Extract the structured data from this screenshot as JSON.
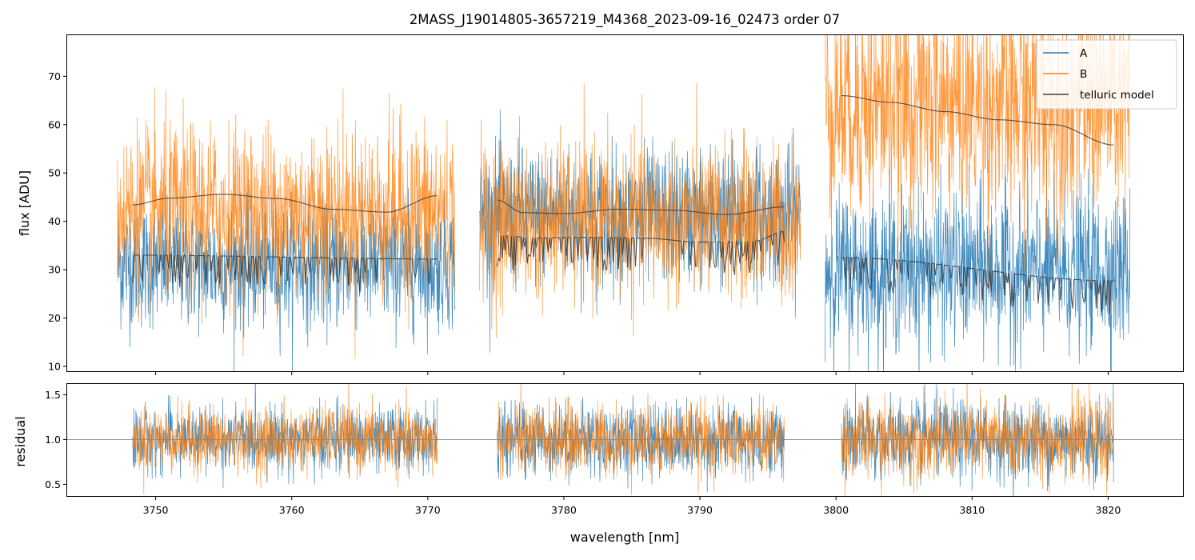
{
  "chart_data": {
    "type": "line",
    "title": "2MASS_J19014805-3657219_M4368_2023-09-16_02473  order 07",
    "xlabel": "wavelength [nm]",
    "xlim": [
      3743.5,
      3825.5
    ],
    "x_ticks": [
      3750,
      3760,
      3770,
      3780,
      3790,
      3800,
      3810,
      3820
    ],
    "x_tick_labels": [
      "3750",
      "3760",
      "3770",
      "3780",
      "3790",
      "3800",
      "3810",
      "3820"
    ],
    "colors": {
      "A": "#1f77b4",
      "B": "#ff7f0e",
      "telluric": "#3b3b3b",
      "refline": "#888888"
    },
    "legend": {
      "position": "top-right",
      "entries": [
        "A",
        "B",
        "telluric model"
      ]
    },
    "panels": [
      {
        "name": "flux",
        "ylabel": "flux [ADU]",
        "ylim": [
          9,
          78.5
        ],
        "y_ticks": [
          10,
          20,
          30,
          40,
          50,
          60,
          70
        ],
        "y_tick_labels": [
          "10",
          "20",
          "30",
          "40",
          "50",
          "60",
          "70"
        ],
        "segments": [
          {
            "range": [
              3747.2,
              3772.0
            ],
            "A": {
              "mean": 31,
              "noise": 6.5
            },
            "B": {
              "mean": 42,
              "noise": 9
            },
            "telluric_B": {
              "x": [
                3748.3,
                3751,
                3755,
                3759,
                3763,
                3767,
                3770.7
              ],
              "y": [
                43.4,
                44.8,
                45.6,
                44.7,
                42.5,
                41.9,
                45.3
              ]
            },
            "telluric_A": {
              "x": [
                3748.3,
                3770.7
              ],
              "y": [
                33.0,
                32.2
              ]
            }
          },
          {
            "range": [
              3773.8,
              3797.4
            ],
            "A": {
              "mean": 41,
              "noise": 7
            },
            "B": {
              "mean": 40,
              "noise": 8
            },
            "telluric_B": {
              "x": [
                3775.1,
                3777,
                3780,
                3784,
                3788,
                3792,
                3796.2
              ],
              "y": [
                44.4,
                41.8,
                41.6,
                42.5,
                42.3,
                41.4,
                43.0
              ]
            },
            "telluric_A": {
              "x": [
                3775.1,
                3778,
                3782,
                3786,
                3790,
                3794,
                3796.2
              ],
              "y": [
                37.1,
                36.6,
                36.7,
                36.5,
                35.7,
                35.9,
                37.9
              ]
            }
          },
          {
            "range": [
              3799.2,
              3821.6
            ],
            "A": {
              "mean": 30,
              "noise": 8
            },
            "B": {
              "mean": 64,
              "noise": 12
            },
            "telluric_B": {
              "x": [
                3800.4,
                3804,
                3808,
                3812,
                3816,
                3820.4
              ],
              "y": [
                66.0,
                64.6,
                62.7,
                61.0,
                60.0,
                55.8
              ]
            },
            "telluric_A": {
              "x": [
                3800.4,
                3820.4
              ],
              "y": [
                32.5,
                27.7
              ]
            }
          }
        ]
      },
      {
        "name": "residual",
        "ylabel": "residual",
        "ylim": [
          0.37,
          1.62
        ],
        "y_ticks": [
          0.5,
          1.0,
          1.5
        ],
        "y_tick_labels": [
          "0.5",
          "1.0",
          "1.5"
        ],
        "reference_line": 1.0,
        "segments": [
          {
            "range": [
              3748.3,
              3770.7
            ],
            "noise": 0.18
          },
          {
            "range": [
              3775.1,
              3796.2
            ],
            "noise": 0.2
          },
          {
            "range": [
              3800.4,
              3820.4
            ],
            "noise": 0.22
          }
        ]
      }
    ]
  }
}
